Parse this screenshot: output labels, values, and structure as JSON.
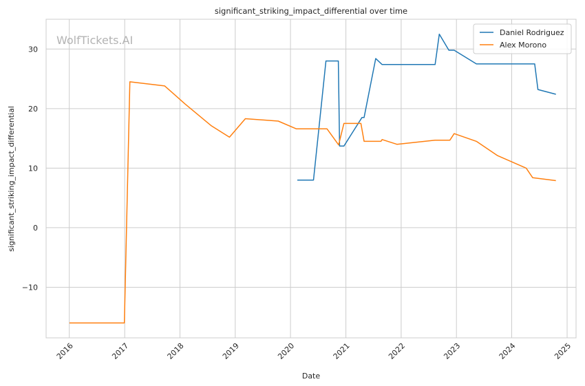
{
  "chart_data": {
    "type": "line",
    "title": "significant_striking_impact_differential over time",
    "xlabel": "Date",
    "ylabel": "significant_striking_impact_differential",
    "watermark": "WolfTickets.AI",
    "xlim": [
      "2015-08-01",
      "2025-03-01"
    ],
    "ylim": [
      -18.5,
      35
    ],
    "x_ticks": [
      "2016",
      "2017",
      "2018",
      "2019",
      "2020",
      "2021",
      "2022",
      "2023",
      "2024",
      "2025"
    ],
    "y_ticks": [
      -10,
      0,
      10,
      20,
      30
    ],
    "y_tick_labels": [
      "−10",
      "0",
      "10",
      "20",
      "30"
    ],
    "grid": true,
    "legend_position": "top-right",
    "colors": {
      "Daniel Rodriguez": "#1f77b4",
      "Alex Morono": "#ff7f0e"
    },
    "series": [
      {
        "name": "Daniel Rodriguez",
        "color": "#1f77b4",
        "points": [
          [
            "2020-02-15",
            8.0
          ],
          [
            "2020-06-01",
            8.0
          ],
          [
            "2020-08-22",
            28.0
          ],
          [
            "2020-11-12",
            28.0
          ],
          [
            "2020-11-20",
            13.7
          ],
          [
            "2020-12-19",
            13.7
          ],
          [
            "2021-04-17",
            18.5
          ],
          [
            "2021-05-01",
            18.5
          ],
          [
            "2021-07-17",
            28.4
          ],
          [
            "2021-08-28",
            27.4
          ],
          [
            "2022-08-13",
            27.4
          ],
          [
            "2022-09-10",
            32.5
          ],
          [
            "2022-11-12",
            29.8
          ],
          [
            "2022-12-17",
            29.8
          ],
          [
            "2023-05-13",
            27.5
          ],
          [
            "2024-06-01",
            27.5
          ],
          [
            "2024-06-22",
            23.2
          ],
          [
            "2024-10-19",
            22.4
          ]
        ]
      },
      {
        "name": "Alex Morono",
        "color": "#ff7f0e",
        "points": [
          [
            "2016-01-02",
            -16.0
          ],
          [
            "2016-12-30",
            -16.0
          ],
          [
            "2017-02-04",
            24.5
          ],
          [
            "2017-09-22",
            23.8
          ],
          [
            "2018-02-03",
            20.8
          ],
          [
            "2018-07-28",
            17.1
          ],
          [
            "2018-11-24",
            15.2
          ],
          [
            "2019-03-09",
            18.3
          ],
          [
            "2019-10-12",
            17.9
          ],
          [
            "2020-02-08",
            16.6
          ],
          [
            "2020-08-29",
            16.6
          ],
          [
            "2020-11-14",
            13.9
          ],
          [
            "2020-12-19",
            17.5
          ],
          [
            "2021-04-10",
            17.5
          ],
          [
            "2021-05-01",
            14.5
          ],
          [
            "2021-08-21",
            14.5
          ],
          [
            "2021-08-28",
            14.8
          ],
          [
            "2021-12-04",
            14.0
          ],
          [
            "2022-08-13",
            14.7
          ],
          [
            "2022-11-19",
            14.7
          ],
          [
            "2022-12-17",
            15.8
          ],
          [
            "2023-05-13",
            14.5
          ],
          [
            "2023-09-30",
            12.1
          ],
          [
            "2024-04-06",
            10.0
          ],
          [
            "2024-05-18",
            8.4
          ],
          [
            "2024-10-19",
            7.9
          ]
        ]
      }
    ]
  }
}
